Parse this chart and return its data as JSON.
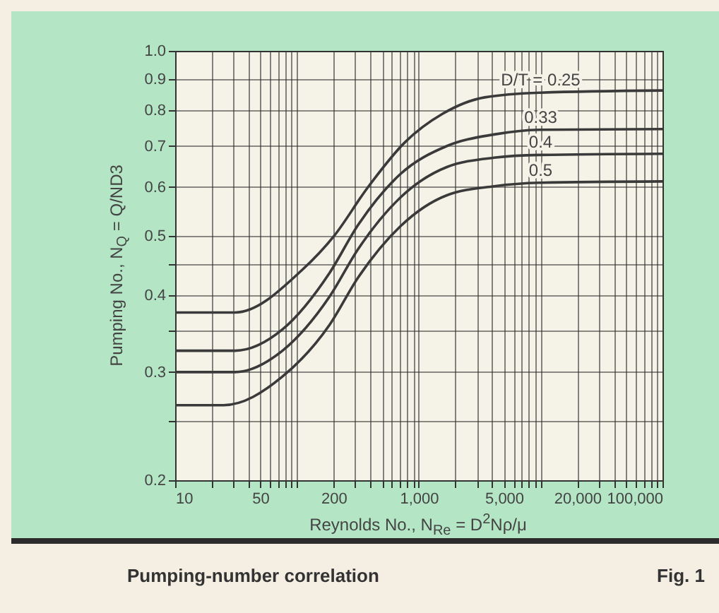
{
  "chart_data": {
    "type": "line",
    "title": "Pumping-number correlation",
    "annotations": [
      "Fig. 1"
    ],
    "xlabel": "Reynolds No., N$_{Re}$ = D$^{2}$Nρ/μ",
    "ylabel": "Pumping No., N$_{Q}$ = Q/ND3",
    "log": "xy",
    "grid": true,
    "legend": false,
    "marker": "none",
    "line_style": "solid",
    "xlim": [
      10,
      100000
    ],
    "ylim": [
      0.2,
      1.0
    ],
    "xticks": [
      10,
      {
        "value": 20,
        "label": null
      },
      {
        "value": 30,
        "label": null
      },
      {
        "value": 40,
        "label": null
      },
      50,
      {
        "value": 60,
        "label": null
      },
      {
        "value": 70,
        "label": null
      },
      {
        "value": 80,
        "label": null
      },
      {
        "value": 90,
        "label": null
      },
      {
        "value": 100,
        "label": null
      },
      200,
      {
        "value": 300,
        "label": null
      },
      {
        "value": 400,
        "label": null
      },
      {
        "value": 500,
        "label": null
      },
      {
        "value": 600,
        "label": null
      },
      {
        "value": 700,
        "label": null
      },
      {
        "value": 800,
        "label": null
      },
      {
        "value": 900,
        "label": null
      },
      {
        "value": 1000,
        "label": "1,000"
      },
      {
        "value": 2000,
        "label": null
      },
      {
        "value": 3000,
        "label": null
      },
      {
        "value": 4000,
        "label": null
      },
      {
        "value": 5000,
        "label": "5,000"
      },
      {
        "value": 6000,
        "label": null
      },
      {
        "value": 7000,
        "label": null
      },
      {
        "value": 8000,
        "label": null
      },
      {
        "value": 9000,
        "label": null
      },
      {
        "value": 10000,
        "label": null
      },
      {
        "value": 20000,
        "label": "20,000"
      },
      {
        "value": 30000,
        "label": null
      },
      {
        "value": 40000,
        "label": null
      },
      {
        "value": 50000,
        "label": null
      },
      {
        "value": 60000,
        "label": null
      },
      {
        "value": 70000,
        "label": null
      },
      {
        "value": 80000,
        "label": null
      },
      {
        "value": 90000,
        "label": null
      },
      {
        "value": 100000,
        "label": "100,000"
      }
    ],
    "yticks": [
      0.2,
      {
        "value": 0.25,
        "label": null
      },
      0.3,
      {
        "value": 0.35,
        "label": null
      },
      0.4,
      {
        "value": 0.45,
        "label": null
      },
      0.5,
      0.6,
      0.7,
      0.8,
      0.9,
      {
        "value": 1,
        "label": "1.0"
      }
    ],
    "series": [
      {
        "name": "D/T = 0.25",
        "color": "#3a3a3a",
        "x": [
          10,
          31,
          109,
          202,
          378,
          770,
          1570,
          3470,
          10000,
          100000
        ],
        "values": [
          0.375,
          0.375,
          0.439,
          0.5,
          0.598,
          0.71,
          0.79,
          0.84,
          0.855,
          0.862
        ]
      },
      {
        "name": "0.33",
        "color": "#3a3a3a",
        "x": [
          10,
          31,
          76,
          185,
          316,
          705,
          1700,
          4150,
          10000,
          100000
        ],
        "values": [
          0.325,
          0.325,
          0.352,
          0.435,
          0.52,
          0.63,
          0.7,
          0.731,
          0.744,
          0.746
        ]
      },
      {
        "name": "0.4",
        "color": "#3a3a3a",
        "x": [
          10,
          31,
          76,
          185,
          316,
          705,
          1700,
          4150,
          10000,
          100000
        ],
        "values": [
          0.3,
          0.3,
          0.325,
          0.398,
          0.475,
          0.577,
          0.647,
          0.67,
          0.677,
          0.68
        ]
      },
      {
        "name": "0.5",
        "color": "#3a3a3a",
        "x": [
          10,
          25,
          76,
          185,
          316,
          705,
          1700,
          4150,
          10000,
          100000
        ],
        "values": [
          0.265,
          0.265,
          0.295,
          0.358,
          0.427,
          0.518,
          0.582,
          0.602,
          0.61,
          0.613
        ]
      }
    ]
  }
}
